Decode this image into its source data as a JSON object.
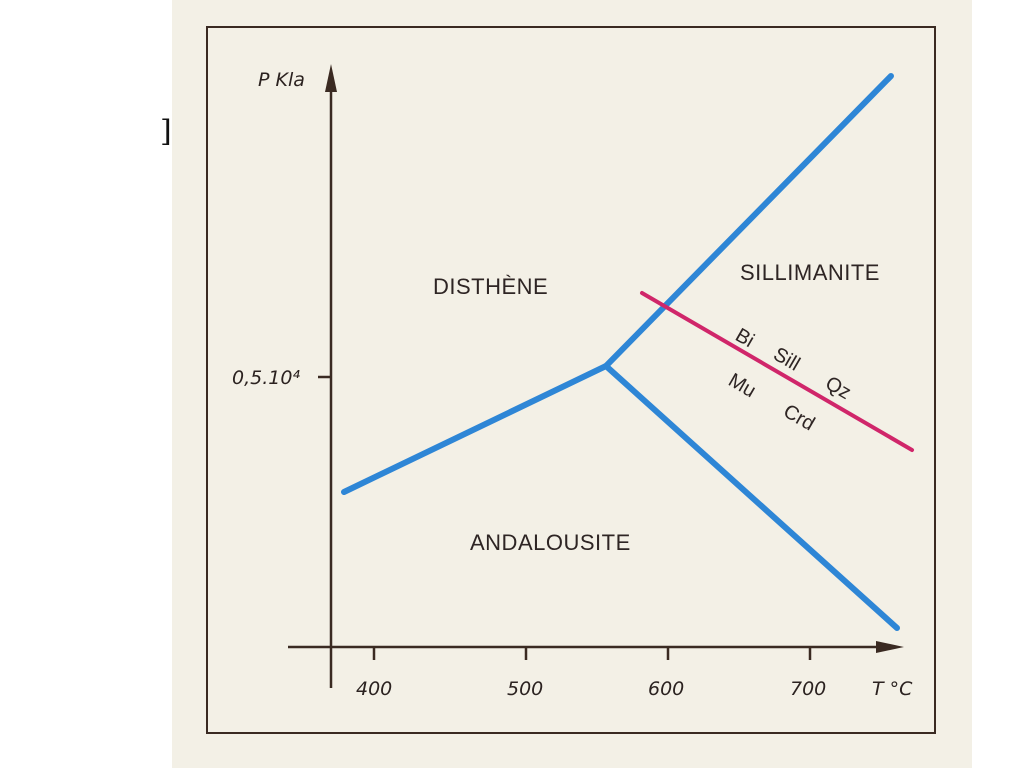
{
  "diagram": {
    "colors": {
      "paper": "#f3f0e6",
      "frame": "#3a2a22",
      "axis": "#3a2a22",
      "phase_boundary": "#2e86d6",
      "reaction_line": "#d0266a"
    },
    "y_axis": {
      "label": "P Kla",
      "tick_label": "0,5.10⁴"
    },
    "x_axis": {
      "label": "T °C",
      "tick_labels": [
        "400",
        "500",
        "600",
        "700"
      ]
    },
    "regions": {
      "disthene": "DISTHÈNE",
      "sillimanite": "SILLIMANITE",
      "andalousite": "ANDALOUSITE"
    },
    "reaction": {
      "top": [
        "Bi",
        "Sill",
        "Qz"
      ],
      "bottom": [
        "Mu",
        "Crd"
      ]
    }
  }
}
